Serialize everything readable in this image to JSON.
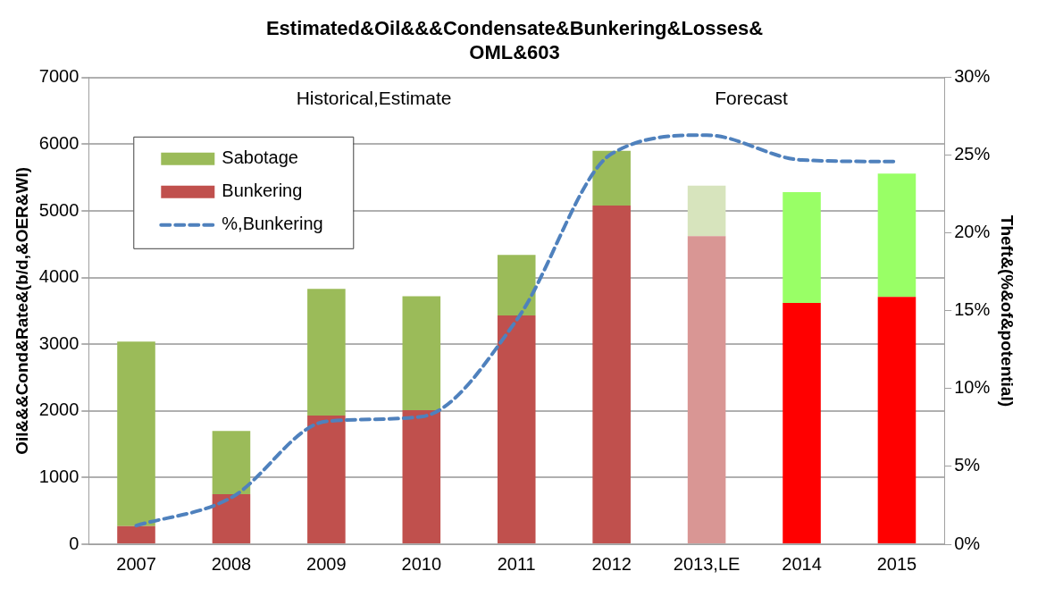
{
  "chart_data": {
    "type": "bar",
    "stacked": true,
    "title": "Estimated&Oil&&&Condensate&Bunkering&Losses& OML&603",
    "ylabel": "Oil&&&Cond&Rate&(b/d,&OER&WI)",
    "y2label": "Theft&(%&of&potential)",
    "categories": [
      "2007",
      "2008",
      "2009",
      "2010",
      "2011",
      "2012",
      "2013,LE",
      "2014",
      "2015"
    ],
    "series": [
      {
        "name": "Bunkering",
        "colors": [
          "#c0504d",
          "#c0504d",
          "#c0504d",
          "#c0504d",
          "#c0504d",
          "#c0504d",
          "#d99694",
          "#ff0000",
          "#ff0000"
        ],
        "values": [
          270,
          750,
          1930,
          2010,
          3430,
          5080,
          4620,
          3620,
          3710
        ]
      },
      {
        "name": "Sabotage",
        "colors": [
          "#9bbb59",
          "#9bbb59",
          "#9bbb59",
          "#9bbb59",
          "#9bbb59",
          "#9bbb59",
          "#d7e4bd",
          "#99ff66",
          "#99ff66"
        ],
        "values": [
          2770,
          950,
          1900,
          1710,
          910,
          820,
          760,
          1660,
          1850
        ]
      },
      {
        "name": "%,Bunkering",
        "type": "line",
        "axis": "y2",
        "color": "#4f81bd",
        "line_style": "dashed",
        "marker": "none",
        "values": [
          1.2,
          3.0,
          7.9,
          8.2,
          14.4,
          25.1,
          26.3,
          24.7,
          24.6
        ]
      }
    ],
    "ylim": [
      0,
      7000
    ],
    "yticks": [
      0,
      1000,
      2000,
      3000,
      4000,
      5000,
      6000,
      7000
    ],
    "y2lim": [
      0,
      30
    ],
    "y2ticks": [
      {
        "value": 0,
        "label": "0%"
      },
      {
        "value": 5,
        "label": "5%"
      },
      {
        "value": 10,
        "label": "10%"
      },
      {
        "value": 15,
        "label": "15%"
      },
      {
        "value": 20,
        "label": "20%"
      },
      {
        "value": 25,
        "label": "25%"
      },
      {
        "value": 30,
        "label": "30%"
      }
    ],
    "grid": "y",
    "legend": "top left",
    "annotations": [
      "Historical,Estimate",
      "Forecast"
    ]
  }
}
